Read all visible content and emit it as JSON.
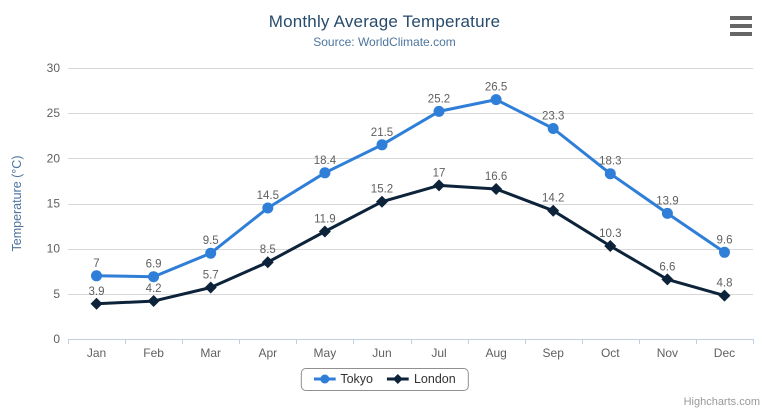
{
  "chart": {
    "credits": "Highcharts.com",
    "export_menu_icon": "hamburger-icon"
  },
  "colors": {
    "tokyo": "#2f7ed8",
    "london": "#0d233a",
    "grid": "#d8d8d8",
    "axis_line": "#c0d0e0",
    "axis_label": "#606060",
    "data_label": "#606060",
    "title": "#274b6d",
    "subtitle": "#4d759e",
    "axis_title": "#4d759e",
    "legend_border": "#909090",
    "legend_text": "#333333",
    "credits_text": "#999999",
    "menu_icon": "#666666"
  },
  "chart_data": {
    "type": "line",
    "title": "Monthly Average Temperature",
    "subtitle": "Source: WorldClimate.com",
    "categories": [
      "Jan",
      "Feb",
      "Mar",
      "Apr",
      "May",
      "Jun",
      "Jul",
      "Aug",
      "Sep",
      "Oct",
      "Nov",
      "Dec"
    ],
    "series": [
      {
        "name": "Tokyo",
        "color": "#2f7ed8",
        "marker": "circle",
        "values": [
          7,
          6.9,
          9.5,
          14.5,
          18.4,
          21.5,
          25.2,
          26.5,
          23.3,
          18.3,
          13.9,
          9.6
        ]
      },
      {
        "name": "London",
        "color": "#0d233a",
        "marker": "diamond",
        "values": [
          3.9,
          4.2,
          5.7,
          8.5,
          11.9,
          15.2,
          17,
          16.6,
          14.2,
          10.3,
          6.6,
          4.8
        ]
      }
    ],
    "xlabel": "",
    "ylabel": "Temperature (°C)",
    "ylim": [
      0,
      30
    ],
    "ytick_interval": 5,
    "grid": true,
    "data_labels": true,
    "legend_position": "bottom-center"
  }
}
